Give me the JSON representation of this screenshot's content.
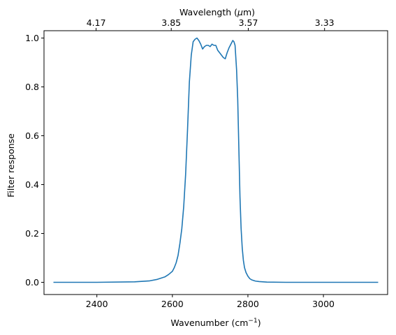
{
  "chart_data": {
    "type": "line",
    "xlabel": "Wavenumber (cm",
    "xlabel_sup": "−1",
    "xlabel_end": ")",
    "ylabel": "Filter response",
    "top_xlabel": "Wavelength (",
    "top_xlabel_mu": "μ",
    "top_xlabel_end": "m)",
    "xlim": [
      2260,
      3170
    ],
    "ylim": [
      -0.05,
      1.03
    ],
    "xticks": [
      2400,
      2600,
      2800,
      3000
    ],
    "xtick_labels": [
      "2400",
      "2600",
      "2800",
      "3000"
    ],
    "yticks": [
      0.0,
      0.2,
      0.4,
      0.6,
      0.8,
      1.0
    ],
    "ytick_labels": [
      "0.0",
      "0.2",
      "0.4",
      "0.6",
      "0.8",
      "1.0"
    ],
    "top_ticks_wavenumber": [
      2398,
      2597,
      2801,
      3003
    ],
    "top_tick_labels": [
      "4.17",
      "3.85",
      "3.57",
      "3.33"
    ],
    "line_color": "#1f77b4",
    "grid": false,
    "series": [
      {
        "x": [
          2285,
          2400,
          2500,
          2540,
          2560,
          2580,
          2590,
          2600,
          2605,
          2610,
          2615,
          2620,
          2625,
          2630,
          2635,
          2640,
          2645,
          2650,
          2655,
          2660,
          2665,
          2670,
          2675,
          2680,
          2685,
          2690,
          2695,
          2700,
          2705,
          2710,
          2715,
          2720,
          2725,
          2730,
          2735,
          2740,
          2745,
          2750,
          2755,
          2760,
          2763,
          2766,
          2770,
          2773,
          2776,
          2779,
          2782,
          2785,
          2788,
          2791,
          2795,
          2800,
          2805,
          2810,
          2820,
          2830,
          2850,
          2900,
          3000,
          3145
        ],
        "y": [
          0.0,
          0.0,
          0.002,
          0.006,
          0.012,
          0.022,
          0.032,
          0.045,
          0.06,
          0.08,
          0.11,
          0.16,
          0.22,
          0.31,
          0.44,
          0.62,
          0.82,
          0.93,
          0.985,
          0.995,
          1.0,
          0.99,
          0.975,
          0.955,
          0.965,
          0.97,
          0.97,
          0.965,
          0.975,
          0.97,
          0.97,
          0.95,
          0.94,
          0.93,
          0.92,
          0.915,
          0.94,
          0.96,
          0.975,
          0.99,
          0.985,
          0.97,
          0.87,
          0.75,
          0.55,
          0.35,
          0.22,
          0.14,
          0.09,
          0.06,
          0.04,
          0.025,
          0.015,
          0.01,
          0.005,
          0.003,
          0.001,
          0.0,
          0.0,
          0.0
        ]
      }
    ]
  }
}
